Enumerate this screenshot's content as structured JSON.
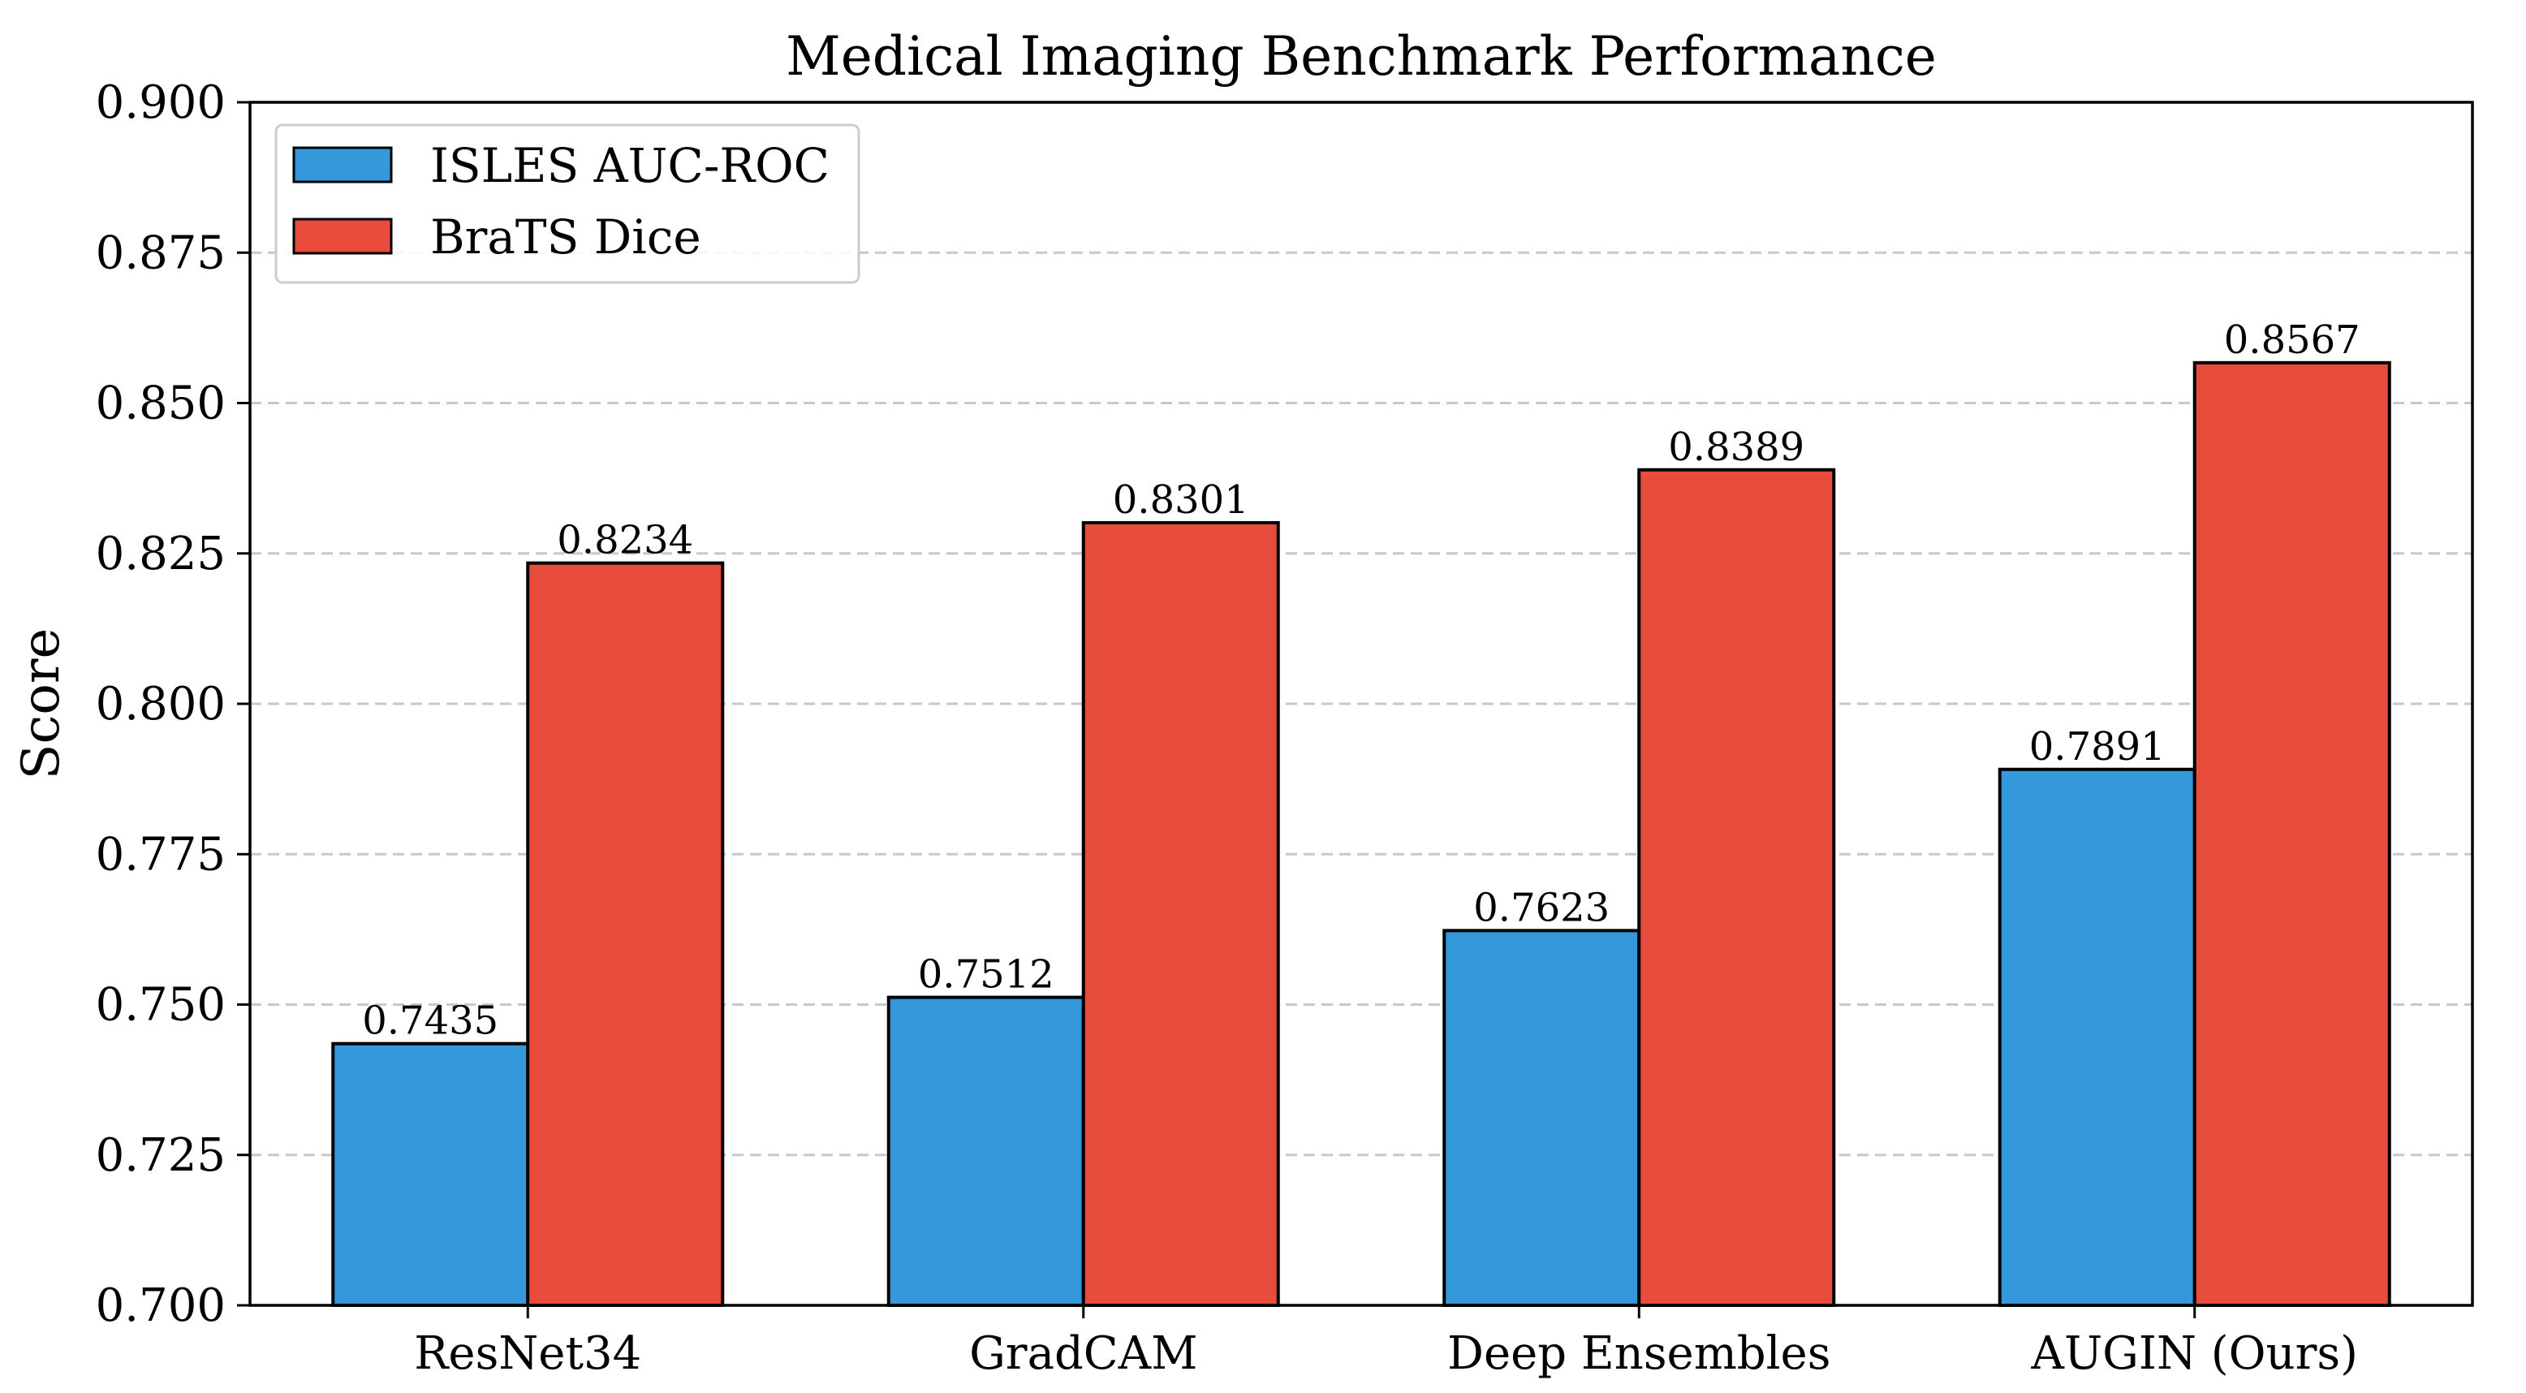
{
  "chart_data": {
    "type": "bar",
    "title": "Medical Imaging Benchmark Performance",
    "xlabel": "",
    "ylabel": "Score",
    "ylim": [
      0.7,
      0.9
    ],
    "yticks": [
      "0.700",
      "0.725",
      "0.750",
      "0.775",
      "0.800",
      "0.825",
      "0.850",
      "0.875",
      "0.900"
    ],
    "ytick_values": [
      0.7,
      0.725,
      0.75,
      0.775,
      0.8,
      0.825,
      0.85,
      0.875,
      0.9
    ],
    "grid": "y-dashed",
    "legend_position": "top-left",
    "categories": [
      "ResNet34",
      "GradCAM",
      "Deep Ensembles",
      "AUGIN (Ours)"
    ],
    "series": [
      {
        "name": "ISLES AUC-ROC",
        "color": "#3498db",
        "values": [
          0.7435,
          0.7512,
          0.7623,
          0.7891
        ],
        "labels": [
          "0.7435",
          "0.7512",
          "0.7623",
          "0.7891"
        ]
      },
      {
        "name": "BraTS Dice",
        "color": "#e74c3c",
        "values": [
          0.8234,
          0.8301,
          0.8389,
          0.8567
        ],
        "labels": [
          "0.8234",
          "0.8301",
          "0.8389",
          "0.8567"
        ]
      }
    ]
  }
}
